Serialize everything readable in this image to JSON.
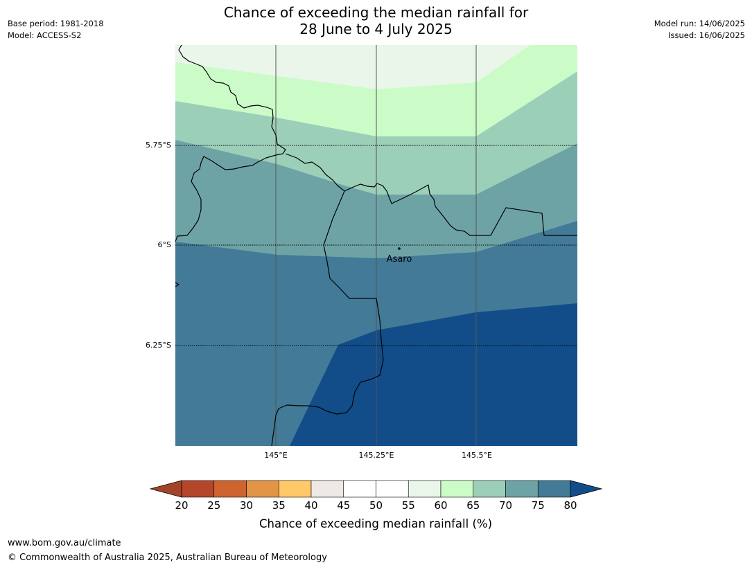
{
  "title": {
    "line1": "Chance of exceeding the median rainfall for",
    "line2": "28 June to 4 July 2025"
  },
  "meta": {
    "base_period": "Base period: 1981-2018",
    "model": "Model: ACCESS-S2",
    "model_run": "Model run: 14/06/2025",
    "issued": "Issued: 16/06/2025"
  },
  "map": {
    "lat_labels": [
      "5.75°S",
      "6°S",
      "6.25°S"
    ],
    "lon_labels": [
      "145°E",
      "145.25°E",
      "145.5°E"
    ],
    "place": {
      "name": "Asaro"
    }
  },
  "colorbar": {
    "ticks": [
      "20",
      "25",
      "30",
      "35",
      "40",
      "45",
      "50",
      "55",
      "60",
      "65",
      "70",
      "75",
      "80"
    ],
    "label": "Chance of exceeding median rainfall (%)",
    "colors": [
      "#b5462a",
      "#d0642f",
      "#e49447",
      "#fec966",
      "#eee9e5",
      "#ffffff",
      "#ffffff",
      "#eaf6e9",
      "#cbfcc8",
      "#9ccfb8",
      "#6ea3a6",
      "#427a98"
    ],
    "under_color": "#a3442a",
    "over_color": "#124d89"
  },
  "footer": {
    "line1": "www.bom.gov.au/climate",
    "line2": "© Commonwealth of Australia 2025, Australian Bureau of Meteorology"
  }
}
